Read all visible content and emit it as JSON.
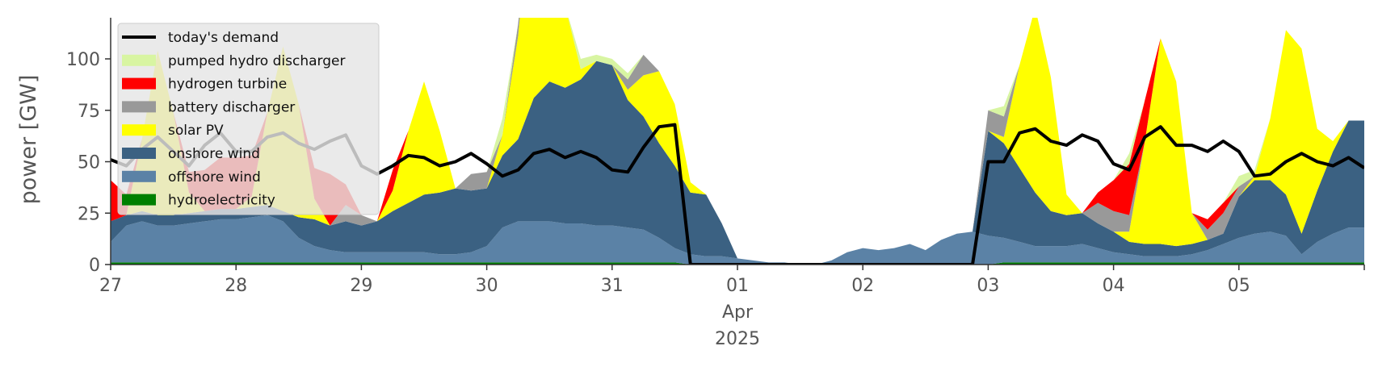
{
  "chart_data": {
    "type": "area",
    "title": "",
    "xlabel": "",
    "ylabel": "power [GW]",
    "ylim": [
      0,
      120
    ],
    "xlim": [
      "2025-03-27T00:00",
      "2025-04-06T00:00"
    ],
    "grid": false,
    "legend_position": "top-left",
    "y_ticks": [
      0,
      25,
      50,
      75,
      100
    ],
    "x_ticks": [
      {
        "date": "2025-03-27",
        "label": "27"
      },
      {
        "date": "2025-03-28",
        "label": "28"
      },
      {
        "date": "2025-03-29",
        "label": "29"
      },
      {
        "date": "2025-03-30",
        "label": "30"
      },
      {
        "date": "2025-03-31",
        "label": "31"
      },
      {
        "date": "2025-04-01",
        "label": "01"
      },
      {
        "date": "2025-04-02",
        "label": "02"
      },
      {
        "date": "2025-04-03",
        "label": "03"
      },
      {
        "date": "2025-04-04",
        "label": "04"
      },
      {
        "date": "2025-04-05",
        "label": "05"
      }
    ],
    "month_label": "Apr",
    "year_label": "2025",
    "x": [
      "2025-03-27T00:00",
      "2025-03-27T03:00",
      "2025-03-27T06:00",
      "2025-03-27T09:00",
      "2025-03-27T12:00",
      "2025-03-27T15:00",
      "2025-03-27T18:00",
      "2025-03-27T21:00",
      "2025-03-28T00:00",
      "2025-03-28T03:00",
      "2025-03-28T06:00",
      "2025-03-28T09:00",
      "2025-03-28T12:00",
      "2025-03-28T15:00",
      "2025-03-28T18:00",
      "2025-03-28T21:00",
      "2025-03-29T00:00",
      "2025-03-29T03:00",
      "2025-03-29T06:00",
      "2025-03-29T09:00",
      "2025-03-29T12:00",
      "2025-03-29T15:00",
      "2025-03-29T18:00",
      "2025-03-29T21:00",
      "2025-03-30T00:00",
      "2025-03-30T03:00",
      "2025-03-30T06:00",
      "2025-03-30T09:00",
      "2025-03-30T12:00",
      "2025-03-30T15:00",
      "2025-03-30T18:00",
      "2025-03-30T21:00",
      "2025-03-31T00:00",
      "2025-03-31T03:00",
      "2025-03-31T06:00",
      "2025-03-31T09:00",
      "2025-03-31T12:00",
      "2025-03-31T15:00",
      "2025-03-31T18:00",
      "2025-03-31T21:00",
      "2025-04-01T00:00",
      "2025-04-01T03:00",
      "2025-04-01T06:00",
      "2025-04-01T09:00",
      "2025-04-01T12:00",
      "2025-04-01T15:00",
      "2025-04-01T18:00",
      "2025-04-01T21:00",
      "2025-04-02T00:00",
      "2025-04-02T03:00",
      "2025-04-02T06:00",
      "2025-04-02T09:00",
      "2025-04-02T12:00",
      "2025-04-02T15:00",
      "2025-04-02T18:00",
      "2025-04-02T21:00",
      "2025-04-03T00:00",
      "2025-04-03T03:00",
      "2025-04-03T06:00",
      "2025-04-03T09:00",
      "2025-04-03T12:00",
      "2025-04-03T15:00",
      "2025-04-03T18:00",
      "2025-04-03T21:00",
      "2025-04-04T00:00",
      "2025-04-04T03:00",
      "2025-04-04T06:00",
      "2025-04-04T09:00",
      "2025-04-04T12:00",
      "2025-04-04T15:00",
      "2025-04-04T18:00",
      "2025-04-04T21:00",
      "2025-04-05T00:00",
      "2025-04-05T03:00",
      "2025-04-05T06:00",
      "2025-04-05T09:00",
      "2025-04-05T12:00",
      "2025-04-05T15:00",
      "2025-04-05T18:00",
      "2025-04-05T21:00",
      "2025-04-06T00:00"
    ],
    "series": [
      {
        "name": "hydroelectricity",
        "color": "#008000",
        "kind": "stack",
        "values": [
          1,
          1,
          1,
          1,
          1,
          1,
          1,
          1,
          1,
          1,
          1,
          1,
          1,
          1,
          1,
          1,
          1,
          1,
          1,
          1,
          1,
          1,
          1,
          1,
          1,
          1,
          1,
          1,
          1,
          1,
          1,
          1,
          1,
          1,
          1,
          1,
          1,
          0,
          0,
          0,
          0,
          0,
          0,
          0,
          0,
          0,
          0,
          0,
          0,
          0,
          0,
          0,
          0,
          0,
          0,
          0,
          0,
          1,
          1,
          1,
          1,
          1,
          1,
          1,
          1,
          1,
          1,
          1,
          1,
          1,
          1,
          1,
          1,
          1,
          1,
          1,
          1,
          1,
          1,
          1,
          1
        ]
      },
      {
        "name": "offshore wind",
        "color": "#5b82a6",
        "kind": "stack",
        "values": [
          10,
          18,
          20,
          18,
          18,
          19,
          20,
          21,
          21,
          22,
          23,
          20,
          12,
          8,
          6,
          5,
          5,
          5,
          5,
          5,
          5,
          4,
          4,
          5,
          8,
          17,
          20,
          20,
          20,
          19,
          19,
          18,
          18,
          17,
          16,
          12,
          7,
          5,
          4,
          4,
          3,
          2,
          1,
          1,
          0,
          0,
          2,
          6,
          8,
          7,
          8,
          10,
          7,
          12,
          15,
          16,
          14,
          12,
          10,
          8,
          8,
          8,
          9,
          7,
          5,
          4,
          3,
          3,
          3,
          4,
          6,
          9,
          12,
          14,
          15,
          13,
          4,
          10,
          14,
          17,
          17
        ]
      },
      {
        "name": "onshore wind",
        "color": "#3b6182",
        "kind": "stack",
        "values": [
          10,
          5,
          5,
          5,
          5,
          5,
          5,
          5,
          5,
          5,
          5,
          5,
          10,
          13,
          12,
          15,
          13,
          15,
          20,
          24,
          28,
          30,
          32,
          30,
          28,
          35,
          40,
          60,
          68,
          66,
          70,
          80,
          78,
          62,
          55,
          46,
          40,
          30,
          30,
          16,
          0,
          0,
          0,
          0,
          0,
          0,
          0,
          0,
          0,
          0,
          0,
          0,
          0,
          0,
          0,
          0,
          51,
          46,
          36,
          26,
          17,
          15,
          15,
          12,
          10,
          6,
          6,
          6,
          5,
          5,
          5,
          5,
          20,
          26,
          25,
          20,
          10,
          25,
          40,
          52,
          52
        ]
      },
      {
        "name": "solar PV",
        "color": "#ffff00",
        "kind": "stack",
        "values": [
          0,
          0,
          35,
          80,
          50,
          10,
          0,
          0,
          0,
          5,
          45,
          80,
          55,
          10,
          0,
          0,
          0,
          0,
          10,
          35,
          55,
          30,
          0,
          0,
          0,
          10,
          50,
          110,
          100,
          40,
          5,
          0,
          0,
          5,
          20,
          35,
          30,
          5,
          0,
          0,
          0,
          0,
          0,
          0,
          0,
          0,
          0,
          0,
          0,
          0,
          0,
          0,
          0,
          0,
          0,
          0,
          0,
          3,
          50,
          90,
          65,
          10,
          0,
          0,
          0,
          5,
          50,
          100,
          80,
          15,
          0,
          0,
          0,
          2,
          30,
          80,
          90,
          30,
          5,
          0,
          0
        ]
      },
      {
        "name": "battery discharger",
        "color": "#999999",
        "kind": "stack",
        "values": [
          0,
          0,
          0,
          0,
          0,
          0,
          0,
          0,
          0,
          0,
          0,
          0,
          0,
          0,
          0,
          8,
          5,
          0,
          0,
          0,
          0,
          0,
          0,
          8,
          8,
          0,
          6,
          0,
          0,
          0,
          0,
          0,
          0,
          5,
          10,
          0,
          0,
          0,
          0,
          0,
          0,
          0,
          0,
          0,
          0,
          0,
          0,
          0,
          0,
          0,
          0,
          0,
          0,
          0,
          0,
          0,
          10,
          10,
          0,
          0,
          0,
          0,
          0,
          10,
          10,
          8,
          0,
          0,
          0,
          0,
          5,
          10,
          5,
          0,
          0,
          0,
          0,
          0,
          0,
          0,
          0
        ]
      },
      {
        "name": "hydrogen turbine",
        "color": "#ff0000",
        "kind": "stack",
        "values": [
          20,
          10,
          0,
          0,
          0,
          10,
          20,
          25,
          25,
          20,
          0,
          0,
          0,
          15,
          25,
          10,
          0,
          0,
          10,
          0,
          0,
          0,
          0,
          0,
          0,
          0,
          0,
          0,
          0,
          0,
          0,
          0,
          0,
          0,
          0,
          0,
          0,
          0,
          0,
          0,
          0,
          0,
          0,
          0,
          0,
          0,
          0,
          0,
          0,
          0,
          0,
          0,
          0,
          0,
          0,
          0,
          0,
          0,
          0,
          0,
          0,
          0,
          0,
          5,
          15,
          25,
          20,
          0,
          0,
          0,
          5,
          5,
          0,
          0,
          0,
          0,
          0,
          0,
          0,
          0,
          0
        ]
      },
      {
        "name": "pumped hydro discharger",
        "color": "#d8f5a2",
        "kind": "stack",
        "values": [
          0,
          0,
          0,
          0,
          0,
          0,
          0,
          0,
          0,
          0,
          0,
          0,
          0,
          0,
          0,
          0,
          0,
          0,
          0,
          0,
          0,
          0,
          0,
          0,
          0,
          8,
          0,
          0,
          0,
          0,
          5,
          3,
          3,
          3,
          0,
          0,
          0,
          0,
          0,
          0,
          0,
          0,
          0,
          0,
          0,
          0,
          0,
          0,
          0,
          0,
          0,
          0,
          0,
          0,
          0,
          0,
          0,
          5,
          0,
          0,
          0,
          0,
          0,
          0,
          0,
          5,
          0,
          0,
          0,
          0,
          0,
          0,
          5,
          3,
          0,
          0,
          0,
          0,
          0,
          0,
          0
        ]
      },
      {
        "name": "today's demand",
        "color": "#000000",
        "kind": "line",
        "values": [
          51,
          48,
          56,
          62,
          55,
          48,
          58,
          64,
          55,
          55,
          62,
          64,
          59,
          56,
          60,
          63,
          48,
          44,
          48,
          53,
          52,
          48,
          50,
          54,
          49,
          43,
          46,
          54,
          56,
          52,
          55,
          52,
          46,
          45,
          57,
          67,
          68,
          0,
          0,
          0,
          0,
          0,
          0,
          0,
          0,
          0,
          0,
          0,
          0,
          0,
          0,
          0,
          0,
          0,
          0,
          0,
          50,
          50,
          64,
          66,
          60,
          58,
          63,
          60,
          49,
          46,
          62,
          67,
          58,
          58,
          55,
          60,
          55,
          43,
          44,
          50,
          54,
          50,
          48,
          52,
          47
        ]
      }
    ]
  }
}
